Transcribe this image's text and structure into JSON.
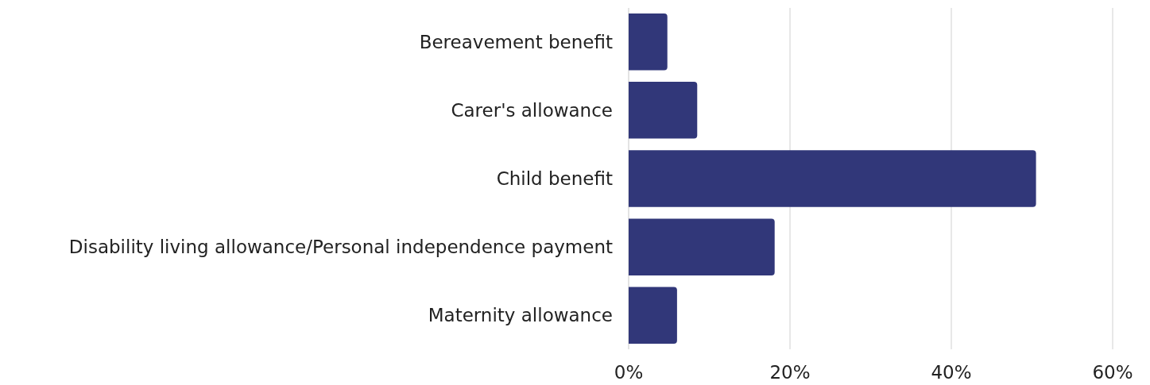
{
  "chart_data": {
    "type": "bar",
    "orientation": "horizontal",
    "categories": [
      "Bereavement benefit",
      "Carer's allowance",
      "Child benefit",
      "Disability living allowance/Personal independence payment",
      "Maternity allowance"
    ],
    "values": [
      4.8,
      8.5,
      50.5,
      18.1,
      6.0
    ],
    "color": "#313779",
    "xlim": [
      0,
      60
    ],
    "xticks": [
      {
        "value": 0,
        "label": "0%"
      },
      {
        "value": 20,
        "label": "20%"
      },
      {
        "value": 40,
        "label": "40%"
      },
      {
        "value": 60,
        "label": "60%"
      }
    ],
    "grid": "x"
  }
}
